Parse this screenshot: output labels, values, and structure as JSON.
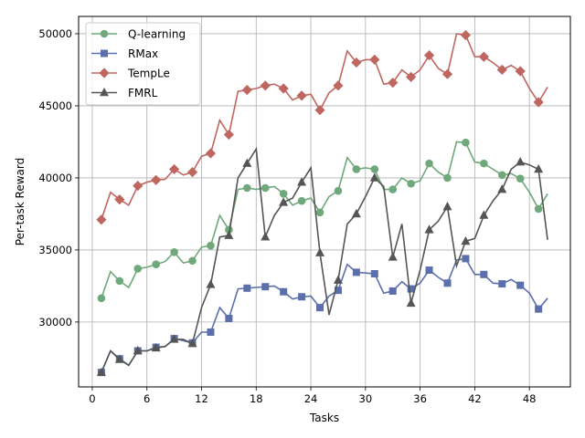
{
  "chart_data": {
    "type": "line",
    "xlabel": "Tasks",
    "ylabel": "Per-task Reward",
    "xlim": [
      -1.5,
      52.5
    ],
    "ylim": [
      25500,
      51200
    ],
    "xticks": [
      0,
      6,
      12,
      18,
      24,
      30,
      36,
      42,
      48
    ],
    "yticks": [
      30000,
      35000,
      40000,
      45000,
      50000
    ],
    "grid": true,
    "legend_position": "top-left",
    "x": [
      1,
      2,
      3,
      4,
      5,
      6,
      7,
      8,
      9,
      10,
      11,
      12,
      13,
      14,
      15,
      16,
      17,
      18,
      19,
      20,
      21,
      22,
      23,
      24,
      25,
      26,
      27,
      28,
      29,
      30,
      31,
      32,
      33,
      34,
      35,
      36,
      37,
      38,
      39,
      40,
      41,
      42,
      43,
      44,
      45,
      46,
      47,
      48,
      49,
      50
    ],
    "series": [
      {
        "name": "Q-learning",
        "color": "#6fa87a",
        "marker": "circle",
        "values": [
          31650,
          33500,
          32850,
          32400,
          33700,
          33800,
          34000,
          34200,
          34850,
          34100,
          34250,
          35200,
          35300,
          37400,
          36400,
          39200,
          39300,
          39200,
          39300,
          39400,
          38900,
          38100,
          38400,
          38600,
          37600,
          38700,
          39100,
          41400,
          40600,
          40700,
          40600,
          39200,
          39200,
          40000,
          39600,
          39800,
          41000,
          40400,
          40000,
          42500,
          42450,
          41100,
          41000,
          40600,
          40200,
          40300,
          39950,
          39000,
          37850,
          38900
        ]
      },
      {
        "name": "RMax",
        "color": "#5b6fad",
        "marker": "square",
        "values": [
          26500,
          28000,
          27450,
          27000,
          28000,
          28000,
          28250,
          28300,
          28850,
          28700,
          28550,
          29300,
          29300,
          31000,
          30250,
          32300,
          32350,
          32400,
          32450,
          32500,
          32100,
          31600,
          31750,
          31800,
          31000,
          31800,
          32200,
          34000,
          33450,
          33400,
          33350,
          32000,
          32150,
          32800,
          32300,
          32700,
          33600,
          33100,
          32700,
          34300,
          34400,
          33300,
          33300,
          32700,
          32650,
          32950,
          32550,
          32000,
          30900,
          31650
        ]
      },
      {
        "name": "TempLe",
        "color": "#c06660",
        "marker": "diamond",
        "values": [
          37100,
          39000,
          38500,
          38100,
          39450,
          39700,
          39850,
          39900,
          40600,
          40200,
          40400,
          41500,
          41700,
          44000,
          43000,
          46000,
          46100,
          46200,
          46400,
          46500,
          46200,
          45400,
          45700,
          45800,
          44700,
          45900,
          46400,
          48800,
          48000,
          48200,
          48200,
          46500,
          46600,
          47500,
          47000,
          47500,
          48500,
          47600,
          47200,
          50000,
          49900,
          48400,
          48400,
          48000,
          47500,
          47800,
          47400,
          46200,
          45250,
          46300
        ]
      },
      {
        "name": "FMRL",
        "color": "#555555",
        "marker": "triangle",
        "values": [
          26500,
          28000,
          27400,
          27000,
          28000,
          28000,
          28200,
          28300,
          28800,
          28800,
          28500,
          31000,
          32600,
          35900,
          36000,
          40000,
          41000,
          42000,
          35900,
          37400,
          38300,
          38600,
          39700,
          40700,
          34800,
          30500,
          32900,
          36800,
          37500,
          38700,
          40000,
          39400,
          34500,
          36800,
          31300,
          33600,
          36400,
          37000,
          38000,
          33900,
          35600,
          35800,
          37400,
          38400,
          39200,
          40600,
          41100,
          40900,
          40600,
          35700
        ]
      }
    ]
  }
}
